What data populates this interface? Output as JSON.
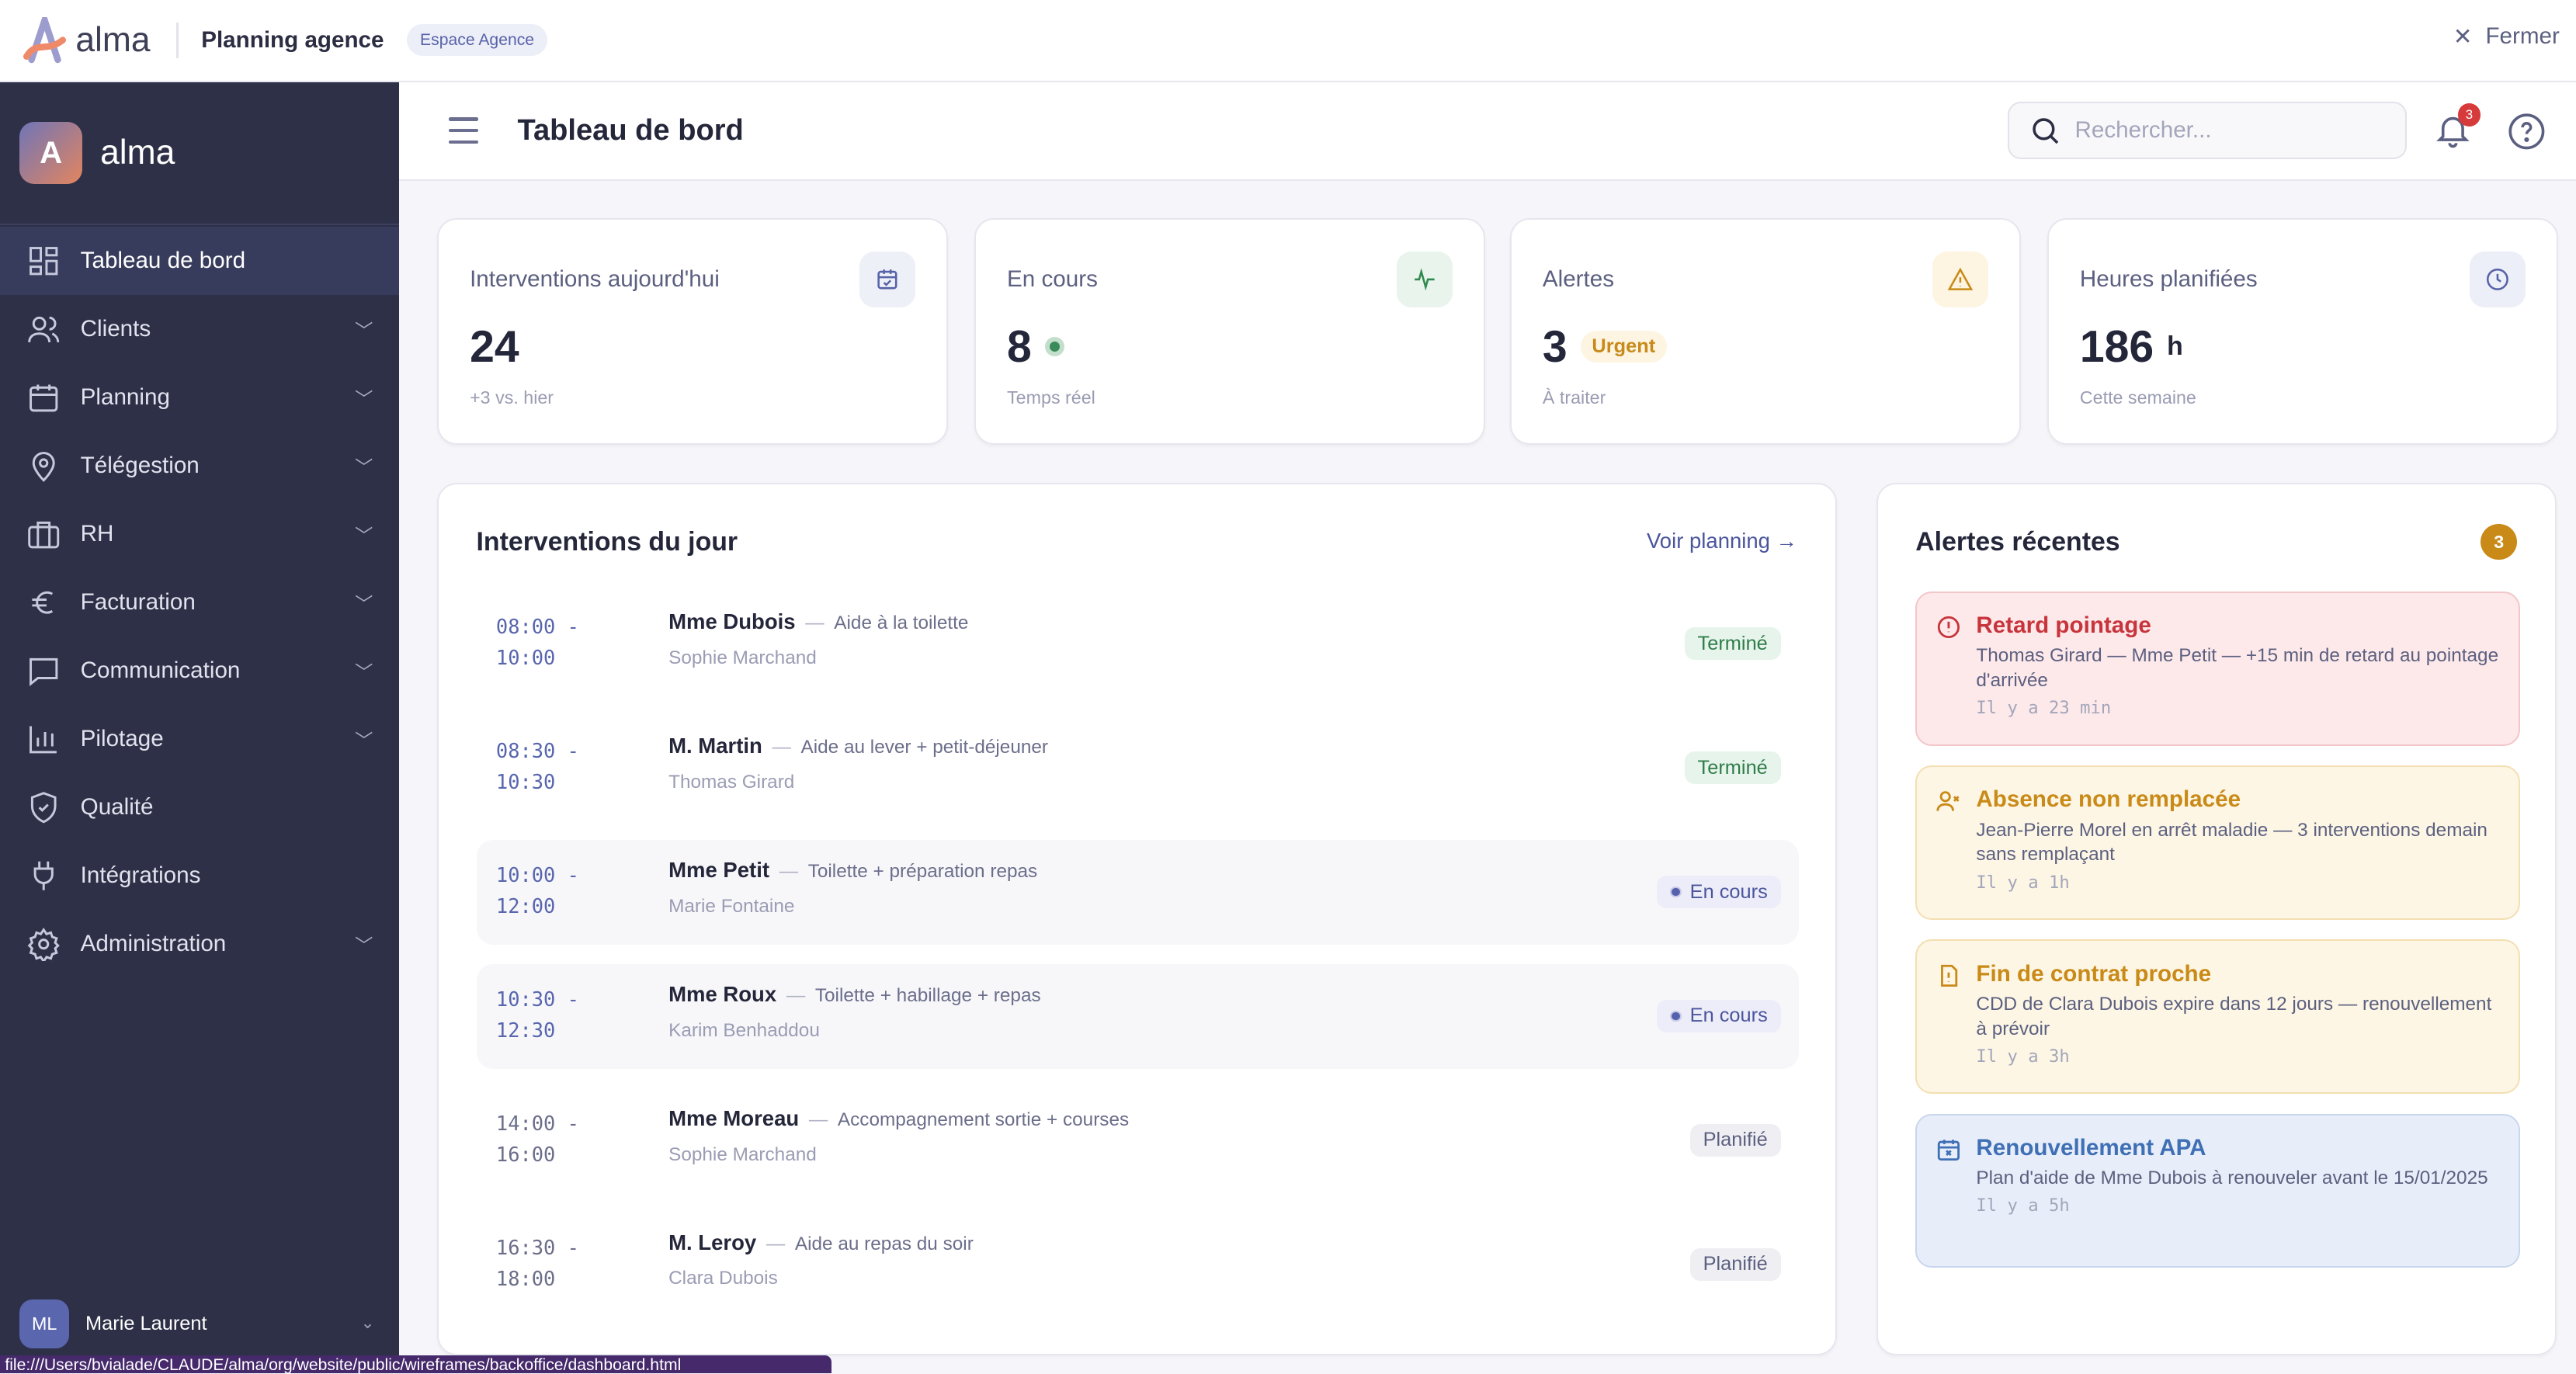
{
  "topbar": {
    "brand": "alma",
    "app_title": "Planning agence",
    "space_badge": "Espace Agence",
    "close_label": "Fermer"
  },
  "sidebar": {
    "brand": "alma",
    "logo_letter": "A",
    "items": [
      {
        "label": "Tableau de bord",
        "icon": "dashboard-icon",
        "active": true
      },
      {
        "label": "Clients",
        "icon": "users-icon",
        "chevron": true
      },
      {
        "label": "Planning",
        "icon": "calendar-icon",
        "chevron": true
      },
      {
        "label": "Télégestion",
        "icon": "map-pin-icon",
        "chevron": true
      },
      {
        "label": "RH",
        "icon": "briefcase-icon",
        "chevron": true
      },
      {
        "label": "Facturation",
        "icon": "euro-icon",
        "chevron": true
      },
      {
        "label": "Communication",
        "icon": "message-icon",
        "chevron": true
      },
      {
        "label": "Pilotage",
        "icon": "bar-chart-icon",
        "chevron": true
      },
      {
        "label": "Qualité",
        "icon": "shield-check-icon"
      },
      {
        "label": "Intégrations",
        "icon": "plug-icon"
      },
      {
        "label": "Administration",
        "icon": "gear-icon",
        "chevron": true
      }
    ],
    "user": {
      "initials": "ML",
      "name": "Marie Laurent"
    }
  },
  "header": {
    "title": "Tableau de bord",
    "search_placeholder": "Rechercher...",
    "notification_count": "3"
  },
  "stats": [
    {
      "label": "Interventions aujourd'hui",
      "value": "24",
      "sub": "+3 vs. hier",
      "icon": "calendar-check-icon"
    },
    {
      "label": "En cours",
      "value": "8",
      "sub": "Temps réel",
      "icon": "activity-icon"
    },
    {
      "label": "Alertes",
      "value": "3",
      "badge": "Urgent",
      "sub": "À traiter",
      "icon": "warning-icon"
    },
    {
      "label": "Heures planifiées",
      "value": "186",
      "unit": "h",
      "sub": "Cette semaine",
      "icon": "clock-icon"
    }
  ],
  "interventions": {
    "title": "Interventions du jour",
    "link": "Voir planning →",
    "rows": [
      {
        "start": "08:00 -",
        "end": "10:00",
        "client": "Mme Dubois",
        "type": "Aide à la toilette",
        "caregiver": "Sophie Marchand",
        "status": "Terminé"
      },
      {
        "start": "08:30 -",
        "end": "10:30",
        "client": "M. Martin",
        "type": "Aide au lever + petit-déjeuner",
        "caregiver": "Thomas Girard",
        "status": "Terminé"
      },
      {
        "start": "10:00 -",
        "end": "12:00",
        "client": "Mme Petit",
        "type": "Toilette + préparation repas",
        "caregiver": "Marie Fontaine",
        "status": "En cours"
      },
      {
        "start": "10:30 -",
        "end": "12:30",
        "client": "Mme Roux",
        "type": "Toilette + habillage + repas",
        "caregiver": "Karim Benhaddou",
        "status": "En cours"
      },
      {
        "start": "14:00 -",
        "end": "16:00",
        "client": "Mme Moreau",
        "type": "Accompagnement sortie + courses",
        "caregiver": "Sophie Marchand",
        "status": "Planifié"
      },
      {
        "start": "16:30 -",
        "end": "18:00",
        "client": "M. Leroy",
        "type": "Aide au repas du soir",
        "caregiver": "Clara Dubois",
        "status": "Planifié"
      }
    ]
  },
  "alerts": {
    "title": "Alertes récentes",
    "count": "3",
    "items": [
      {
        "title": "Retard pointage",
        "desc": "Thomas Girard — Mme Petit — +15 min de retard au pointage d'arrivée",
        "ago": "Il y a 23 min",
        "color": "#c8343c"
      },
      {
        "title": "Absence non remplacée",
        "desc": "Jean-Pierre Morel en arrêt maladie — 3 interventions demain sans remplaçant",
        "ago": "Il y a 1h",
        "color": "#c98a17"
      },
      {
        "title": "Fin de contrat proche",
        "desc": "CDD de Clara Dubois expire dans 12 jours — renouvellement à prévoir",
        "ago": "Il y a 3h",
        "color": "#c98a17"
      },
      {
        "title": "Renouvellement APA",
        "desc": "Plan d'aide de Mme Dubois à renouveler avant le 15/01/2025",
        "ago": "Il y a 5h",
        "color": "#3f6fb5"
      }
    ]
  },
  "status_url": "file:///Users/bvialade/CLAUDE/alma/org/website/public/wireframes/backoffice/dashboard.html"
}
